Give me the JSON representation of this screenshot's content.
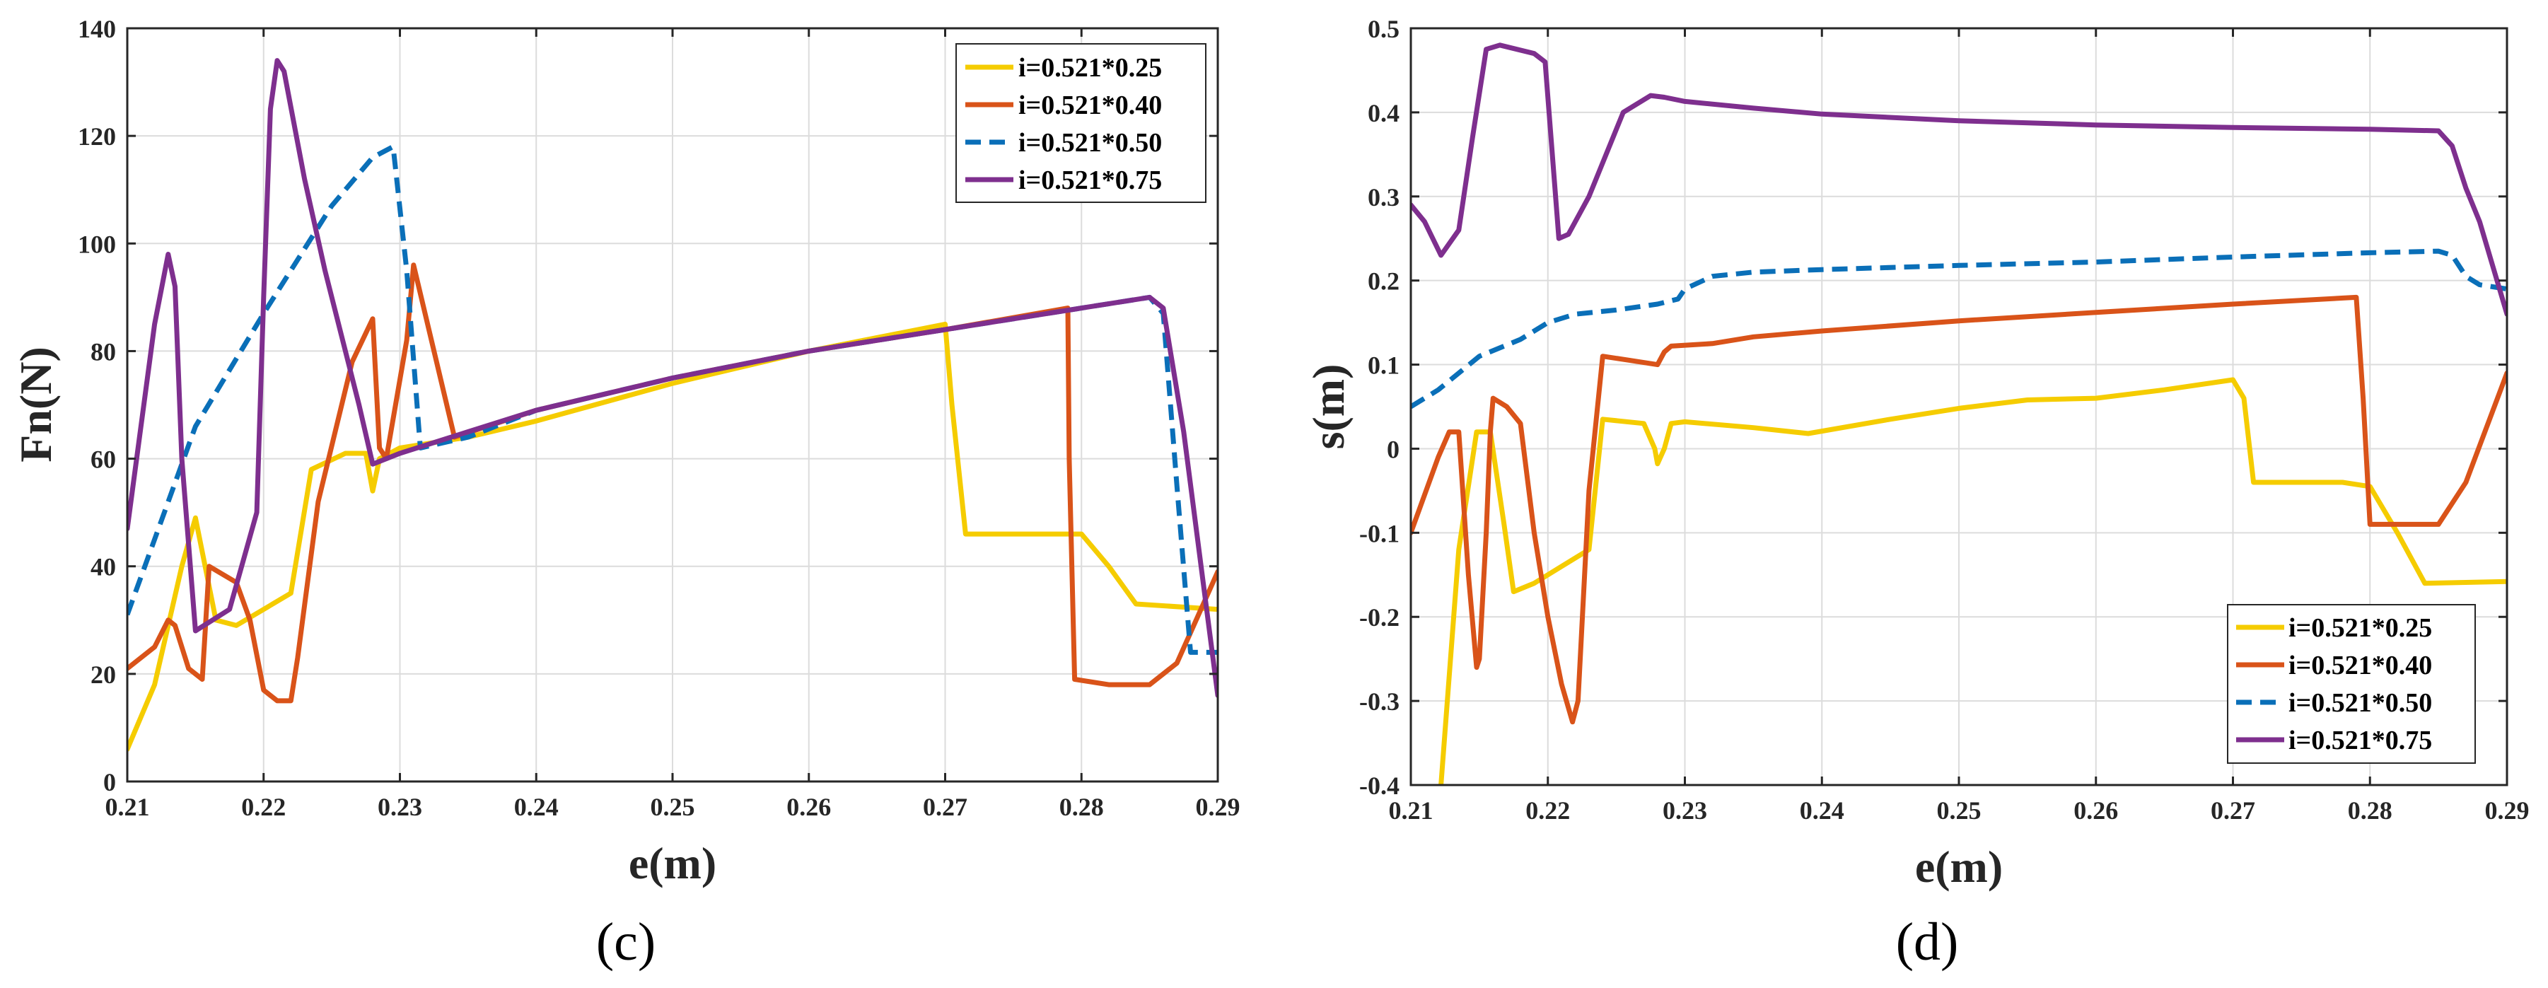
{
  "chart_data": [
    {
      "type": "line",
      "panel": "(c)",
      "title": "",
      "xlabel": "e(m)",
      "ylabel": "Fn(N)",
      "xlim": [
        0.21,
        0.29
      ],
      "ylim": [
        0,
        140
      ],
      "xticks": [
        0.21,
        0.22,
        0.23,
        0.24,
        0.25,
        0.26,
        0.27,
        0.28,
        0.29
      ],
      "xtick_labels": [
        "0.21",
        "0.22",
        "0.23",
        "0.24",
        "0.25",
        "0.26",
        "0.27",
        "0.28",
        "0.29"
      ],
      "yticks": [
        0,
        20,
        40,
        60,
        80,
        100,
        120,
        140
      ],
      "ytick_labels": [
        "0",
        "20",
        "40",
        "60",
        "80",
        "100",
        "120",
        "140"
      ],
      "grid": true,
      "legend_position": "top-right",
      "series": [
        {
          "name": "i=0.521*0.25",
          "color": "#f5cc00",
          "dash": "solid",
          "x": [
            0.21,
            0.212,
            0.214,
            0.215,
            0.2165,
            0.218,
            0.22,
            0.222,
            0.2235,
            0.226,
            0.2275,
            0.228,
            0.2285,
            0.23,
            0.235,
            0.24,
            0.25,
            0.26,
            0.27,
            0.2705,
            0.2715,
            0.275,
            0.278,
            0.28,
            0.282,
            0.284,
            0.29
          ],
          "y": [
            6,
            18,
            40,
            49,
            30,
            29,
            32,
            35,
            58,
            61,
            61,
            54,
            60,
            62,
            64,
            67,
            74,
            80,
            85,
            70,
            46,
            46,
            46,
            46,
            40,
            33,
            32
          ]
        },
        {
          "name": "i=0.521*0.40",
          "color": "#d95319",
          "dash": "solid",
          "x": [
            0.21,
            0.212,
            0.213,
            0.2135,
            0.2145,
            0.2155,
            0.216,
            0.218,
            0.219,
            0.22,
            0.221,
            0.222,
            0.2225,
            0.224,
            0.2265,
            0.228,
            0.2285,
            0.229,
            0.2305,
            0.231,
            0.2325,
            0.234,
            0.24,
            0.25,
            0.26,
            0.27,
            0.279,
            0.2791,
            0.2795,
            0.282,
            0.285,
            0.287,
            0.29
          ],
          "y": [
            21,
            25,
            30,
            29,
            21,
            19,
            40,
            37,
            30,
            17,
            15,
            15,
            23,
            52,
            78,
            86,
            62,
            60,
            82,
            96,
            80,
            64,
            69,
            75,
            80,
            84,
            88,
            60,
            19,
            18,
            18,
            22,
            39
          ]
        },
        {
          "name": "i=0.521*0.50",
          "color": "#0a6fb8",
          "dash": "dashed",
          "x": [
            0.21,
            0.212,
            0.215,
            0.22,
            0.225,
            0.228,
            0.2295,
            0.2305,
            0.2315,
            0.235,
            0.24,
            0.25,
            0.26,
            0.27,
            0.28,
            0.285,
            0.286,
            0.287,
            0.288,
            0.29
          ],
          "y": [
            31,
            45,
            66,
            87,
            107,
            116,
            118,
            95,
            62,
            64,
            69,
            75,
            80,
            84,
            88,
            90,
            87,
            55,
            24,
            24
          ]
        },
        {
          "name": "i=0.521*0.75",
          "color": "#7e2f8e",
          "dash": "solid",
          "x": [
            0.21,
            0.212,
            0.213,
            0.2135,
            0.214,
            0.215,
            0.2175,
            0.2195,
            0.22,
            0.2205,
            0.221,
            0.2215,
            0.223,
            0.2245,
            0.227,
            0.228,
            0.23,
            0.235,
            0.24,
            0.25,
            0.26,
            0.27,
            0.28,
            0.285,
            0.286,
            0.2875,
            0.29
          ],
          "y": [
            47,
            85,
            98,
            92,
            60,
            28,
            32,
            50,
            90,
            125,
            134,
            132,
            112,
            95,
            70,
            59,
            61,
            65,
            69,
            75,
            80,
            84,
            88,
            90,
            88,
            65,
            16
          ]
        }
      ]
    },
    {
      "type": "line",
      "panel": "(d)",
      "title": "",
      "xlabel": "e(m)",
      "ylabel": "s(m)",
      "xlim": [
        0.21,
        0.29
      ],
      "ylim": [
        -0.4,
        0.5
      ],
      "xticks": [
        0.21,
        0.22,
        0.23,
        0.24,
        0.25,
        0.26,
        0.27,
        0.28,
        0.29
      ],
      "xtick_labels": [
        "0.21",
        "0.22",
        "0.23",
        "0.24",
        "0.25",
        "0.26",
        "0.27",
        "0.28",
        "0.29"
      ],
      "yticks": [
        -0.4,
        -0.3,
        -0.2,
        -0.1,
        0,
        0.1,
        0.2,
        0.3,
        0.4,
        0.5
      ],
      "ytick_labels": [
        "-0.4",
        "-0.3",
        "-0.2",
        "-0.1",
        "0",
        "0.1",
        "0.2",
        "0.3",
        "0.4",
        "0.5"
      ],
      "grid": true,
      "legend_position": "bottom-right",
      "series": [
        {
          "name": "i=0.521*0.25",
          "color": "#f5cc00",
          "dash": "solid",
          "x": [
            0.2122,
            0.2135,
            0.2148,
            0.2158,
            0.2168,
            0.2175,
            0.219,
            0.221,
            0.223,
            0.224,
            0.227,
            0.2278,
            0.228,
            0.2285,
            0.229,
            0.23,
            0.235,
            0.239,
            0.245,
            0.25,
            0.255,
            0.26,
            0.265,
            0.27,
            0.2708,
            0.2715,
            0.275,
            0.278,
            0.28,
            0.282,
            0.284,
            0.29
          ],
          "y": [
            -0.4,
            -0.12,
            0.02,
            0.02,
            -0.09,
            -0.17,
            -0.16,
            -0.14,
            -0.12,
            0.035,
            0.03,
            0.0,
            -0.018,
            0.0,
            0.03,
            0.032,
            0.025,
            0.018,
            0.035,
            0.048,
            0.058,
            0.06,
            0.07,
            0.082,
            0.06,
            -0.04,
            -0.04,
            -0.04,
            -0.045,
            -0.1,
            -0.16,
            -0.158
          ]
        },
        {
          "name": "i=0.521*0.40",
          "color": "#d95319",
          "dash": "solid",
          "x": [
            0.21,
            0.212,
            0.2128,
            0.2135,
            0.2142,
            0.2148,
            0.215,
            0.2155,
            0.2158,
            0.216,
            0.217,
            0.218,
            0.219,
            0.22,
            0.221,
            0.2218,
            0.2222,
            0.223,
            0.224,
            0.226,
            0.228,
            0.2285,
            0.229,
            0.232,
            0.235,
            0.24,
            0.25,
            0.26,
            0.27,
            0.279,
            0.2795,
            0.28,
            0.282,
            0.285,
            0.287,
            0.29
          ],
          "y": [
            -0.1,
            -0.01,
            0.02,
            0.02,
            -0.15,
            -0.26,
            -0.25,
            -0.1,
            0.02,
            0.06,
            0.05,
            0.03,
            -0.1,
            -0.2,
            -0.28,
            -0.325,
            -0.3,
            -0.05,
            0.11,
            0.105,
            0.1,
            0.115,
            0.122,
            0.125,
            0.133,
            0.14,
            0.152,
            0.162,
            0.172,
            0.18,
            0.06,
            -0.09,
            -0.09,
            -0.09,
            -0.04,
            0.09
          ]
        },
        {
          "name": "i=0.521*0.50",
          "color": "#0a6fb8",
          "dash": "dashed",
          "x": [
            0.21,
            0.212,
            0.215,
            0.218,
            0.22,
            0.222,
            0.225,
            0.228,
            0.2295,
            0.23,
            0.232,
            0.235,
            0.24,
            0.25,
            0.26,
            0.27,
            0.28,
            0.285,
            0.286,
            0.287,
            0.288,
            0.29
          ],
          "y": [
            0.05,
            0.07,
            0.11,
            0.13,
            0.15,
            0.16,
            0.165,
            0.172,
            0.178,
            0.19,
            0.205,
            0.21,
            0.213,
            0.218,
            0.222,
            0.228,
            0.233,
            0.235,
            0.23,
            0.205,
            0.195,
            0.19
          ]
        },
        {
          "name": "i=0.521*0.75",
          "color": "#7e2f8e",
          "dash": "solid",
          "x": [
            0.21,
            0.211,
            0.2122,
            0.2135,
            0.2145,
            0.2155,
            0.2165,
            0.219,
            0.2198,
            0.2208,
            0.2215,
            0.223,
            0.2255,
            0.2275,
            0.2285,
            0.23,
            0.235,
            0.24,
            0.25,
            0.26,
            0.27,
            0.28,
            0.285,
            0.286,
            0.287,
            0.288,
            0.29
          ],
          "y": [
            0.29,
            0.27,
            0.23,
            0.26,
            0.37,
            0.475,
            0.48,
            0.47,
            0.46,
            0.25,
            0.255,
            0.3,
            0.4,
            0.42,
            0.418,
            0.413,
            0.405,
            0.398,
            0.39,
            0.385,
            0.382,
            0.38,
            0.378,
            0.36,
            0.31,
            0.27,
            0.16
          ]
        }
      ]
    }
  ]
}
